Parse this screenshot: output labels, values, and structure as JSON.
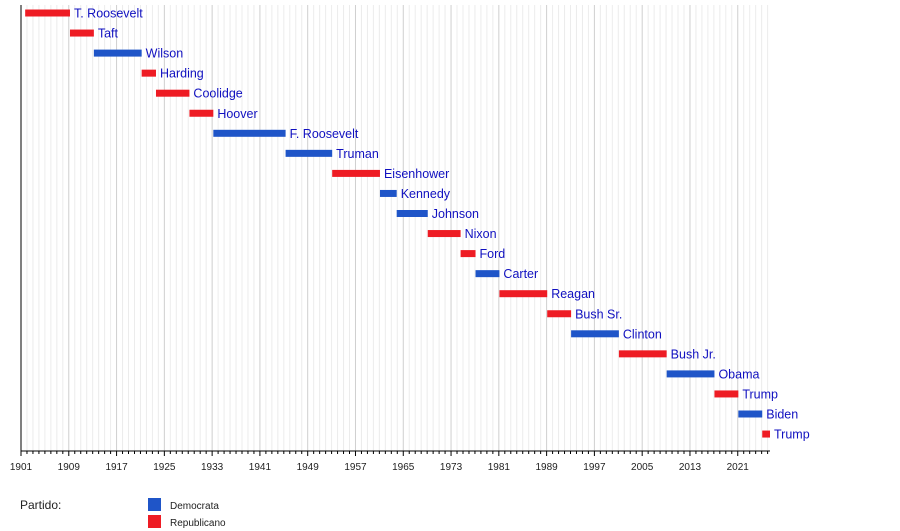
{
  "chart_data": {
    "type": "timeline",
    "xlim": [
      1901,
      2026.4
    ],
    "xticks": [
      1901,
      1909,
      1917,
      1925,
      1933,
      1941,
      1949,
      1957,
      1965,
      1973,
      1981,
      1989,
      1997,
      2005,
      2013,
      2021
    ],
    "grid": "vertical, yearly (major every 8 years)",
    "label_color": "#1010c0",
    "colors": {
      "Democrata": "#1f55c8",
      "Republicano": "#ee1c24"
    },
    "bars": [
      {
        "name": "T. Roosevelt",
        "start": 1901.7,
        "end": 1909.2,
        "party": "Republicano"
      },
      {
        "name": "Taft",
        "start": 1909.2,
        "end": 1913.2,
        "party": "Republicano"
      },
      {
        "name": "Wilson",
        "start": 1913.2,
        "end": 1921.2,
        "party": "Democrata"
      },
      {
        "name": "Harding",
        "start": 1921.2,
        "end": 1923.6,
        "party": "Republicano"
      },
      {
        "name": "Coolidge",
        "start": 1923.6,
        "end": 1929.2,
        "party": "Republicano"
      },
      {
        "name": "Hoover",
        "start": 1929.2,
        "end": 1933.2,
        "party": "Republicano"
      },
      {
        "name": "F. Roosevelt",
        "start": 1933.2,
        "end": 1945.3,
        "party": "Democrata"
      },
      {
        "name": "Truman",
        "start": 1945.3,
        "end": 1953.1,
        "party": "Democrata"
      },
      {
        "name": "Eisenhower",
        "start": 1953.1,
        "end": 1961.1,
        "party": "Republicano"
      },
      {
        "name": "Kennedy",
        "start": 1961.1,
        "end": 1963.9,
        "party": "Democrata"
      },
      {
        "name": "Johnson",
        "start": 1963.9,
        "end": 1969.1,
        "party": "Democrata"
      },
      {
        "name": "Nixon",
        "start": 1969.1,
        "end": 1974.6,
        "party": "Republicano"
      },
      {
        "name": "Ford",
        "start": 1974.6,
        "end": 1977.1,
        "party": "Republicano"
      },
      {
        "name": "Carter",
        "start": 1977.1,
        "end": 1981.1,
        "party": "Democrata"
      },
      {
        "name": "Reagan",
        "start": 1981.1,
        "end": 1989.1,
        "party": "Republicano"
      },
      {
        "name": "Bush Sr.",
        "start": 1989.1,
        "end": 1993.1,
        "party": "Republicano"
      },
      {
        "name": "Clinton",
        "start": 1993.1,
        "end": 2001.1,
        "party": "Democrata"
      },
      {
        "name": "Bush Jr.",
        "start": 2001.1,
        "end": 2009.1,
        "party": "Republicano"
      },
      {
        "name": "Obama",
        "start": 2009.1,
        "end": 2017.1,
        "party": "Democrata"
      },
      {
        "name": "Trump",
        "start": 2017.1,
        "end": 2021.1,
        "party": "Republicano"
      },
      {
        "name": "Biden",
        "start": 2021.1,
        "end": 2025.1,
        "party": "Democrata"
      },
      {
        "name": "Trump",
        "start": 2025.1,
        "end": 2026.4,
        "party": "Republicano"
      }
    ],
    "legend": {
      "title": "Partido:",
      "entries": [
        "Democrata",
        "Republicano"
      ],
      "placement": "bottom-left"
    }
  }
}
